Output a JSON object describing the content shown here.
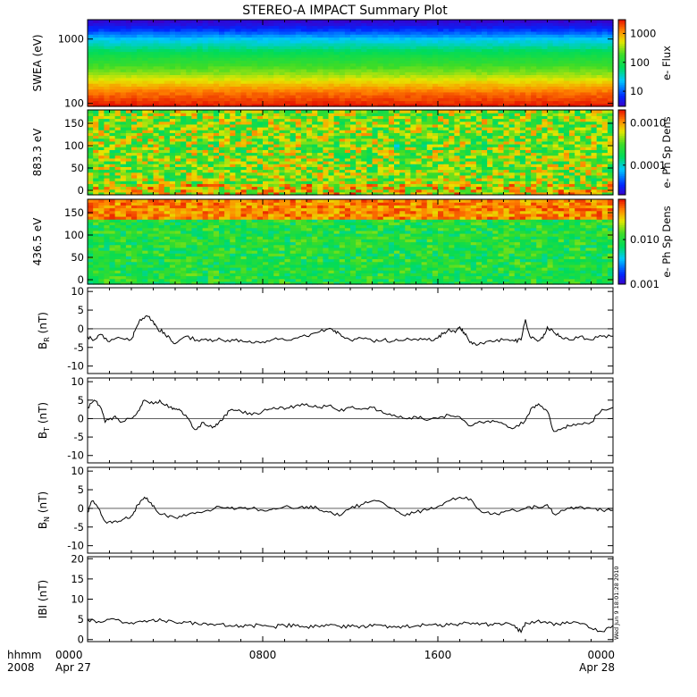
{
  "title": "STEREO-A IMPACT Summary Plot",
  "stamp": "Wed Jun  9 18:01:28 2010",
  "time_axis": {
    "label_top": "hhmm",
    "label_bottom": "2008",
    "ticks": [
      {
        "hour": 0,
        "label": "0000",
        "sub": "Apr 27"
      },
      {
        "hour": 8,
        "label": "0800",
        "sub": ""
      },
      {
        "hour": 16,
        "label": "1600",
        "sub": ""
      },
      {
        "hour": 24,
        "label": "0000",
        "sub": "Apr 28"
      }
    ]
  },
  "colors": {
    "axis": "#000000",
    "line": "#000000"
  },
  "chart_data": [
    {
      "type": "heatmap",
      "id": "swea",
      "ylabel": "SWEA (eV)",
      "yscale": "log",
      "ylim": [
        90,
        2000
      ],
      "yticks": [
        {
          "v": 100,
          "label": "100"
        },
        {
          "v": 1000,
          "label": "1000"
        }
      ],
      "colorbar": {
        "label": "e- Flux",
        "scale": "log",
        "range": [
          3,
          3000
        ],
        "ticks": [
          {
            "v": 10,
            "label": "10"
          },
          {
            "v": 100,
            "label": "100"
          },
          {
            "v": 1000,
            "label": "1000"
          }
        ]
      },
      "energy_profile": [
        [
          90,
          3000
        ],
        [
          150,
          1500
        ],
        [
          300,
          300
        ],
        [
          500,
          120
        ],
        [
          1000,
          25
        ],
        [
          1500,
          6
        ],
        [
          2000,
          3
        ]
      ]
    },
    {
      "type": "heatmap",
      "id": "pad883",
      "ylabel": "883.3 eV",
      "ylim": [
        -10,
        180
      ],
      "yticks": [
        {
          "v": 0,
          "label": "0"
        },
        {
          "v": 50,
          "label": "50"
        },
        {
          "v": 100,
          "label": "100"
        },
        {
          "v": 150,
          "label": "150"
        }
      ],
      "colorbar": {
        "label": "e- Ph Sp Dens",
        "scale": "log",
        "range": [
          2e-05,
          0.002
        ],
        "ticks": [
          {
            "v": 0.0001,
            "label": "0.0001"
          },
          {
            "v": 0.001,
            "label": "0.0010"
          }
        ]
      },
      "base_level": 0.0004,
      "dips": [
        [
          14.2,
          100,
          5e-05
        ],
        [
          15.3,
          100,
          8e-05
        ],
        [
          10.0,
          100,
          0.00012
        ],
        [
          18.1,
          105,
          0.0001
        ]
      ]
    },
    {
      "type": "heatmap",
      "id": "pad436",
      "ylabel": "436.5 eV",
      "ylim": [
        -10,
        180
      ],
      "yticks": [
        {
          "v": 0,
          "label": "0"
        },
        {
          "v": 50,
          "label": "50"
        },
        {
          "v": 100,
          "label": "100"
        },
        {
          "v": 150,
          "label": "150"
        }
      ],
      "colorbar": {
        "label": "e- Ph Sp Dens",
        "scale": "log",
        "range": [
          0.001,
          0.08
        ],
        "ticks": [
          {
            "v": 0.001,
            "label": "0.001"
          },
          {
            "v": 0.01,
            "label": "0.010"
          }
        ]
      },
      "base_level": 0.01,
      "high_level_near_180": 0.05
    },
    {
      "type": "line",
      "id": "br",
      "ylabel": "B",
      "ylabel_sub": "R",
      "ylabel_unit": " (nT)",
      "ylim": [
        -12,
        11
      ],
      "yticks": [
        {
          "v": -10,
          "label": "-10"
        },
        {
          "v": -5,
          "label": "-5"
        },
        {
          "v": 0,
          "label": "0"
        },
        {
          "v": 5,
          "label": "5"
        },
        {
          "v": 10,
          "label": "10"
        }
      ],
      "zero_line": true,
      "points": [
        [
          0,
          -2
        ],
        [
          0.3,
          -3
        ],
        [
          0.6,
          -1.5
        ],
        [
          1.0,
          -3.5
        ],
        [
          1.5,
          -2.5
        ],
        [
          2.0,
          -2.8
        ],
        [
          2.2,
          0
        ],
        [
          2.4,
          2.5
        ],
        [
          2.7,
          3.5
        ],
        [
          3.0,
          2
        ],
        [
          3.2,
          0
        ],
        [
          3.5,
          -1
        ],
        [
          3.8,
          -3
        ],
        [
          4.0,
          -4
        ],
        [
          4.5,
          -2
        ],
        [
          5.0,
          -3
        ],
        [
          5.5,
          -3.2
        ],
        [
          6.0,
          -2.5
        ],
        [
          6.5,
          -3.5
        ],
        [
          7.0,
          -3
        ],
        [
          7.5,
          -3.8
        ],
        [
          8.0,
          -3.5
        ],
        [
          8.5,
          -2.8
        ],
        [
          9.0,
          -3
        ],
        [
          9.5,
          -2.5
        ],
        [
          10.0,
          -2
        ],
        [
          10.5,
          -1
        ],
        [
          11.0,
          0
        ],
        [
          11.3,
          -0.5
        ],
        [
          11.6,
          -2
        ],
        [
          12.0,
          -3
        ],
        [
          12.5,
          -2.5
        ],
        [
          13.0,
          -3.2
        ],
        [
          13.5,
          -3
        ],
        [
          14.0,
          -3.3
        ],
        [
          14.5,
          -3
        ],
        [
          15.0,
          -2.8
        ],
        [
          15.5,
          -3
        ],
        [
          16.0,
          -2.5
        ],
        [
          16.3,
          -1
        ],
        [
          16.5,
          0
        ],
        [
          16.8,
          -1
        ],
        [
          17.0,
          0.5
        ],
        [
          17.2,
          -1
        ],
        [
          17.4,
          -3
        ],
        [
          17.7,
          -4
        ],
        [
          18.0,
          -3.8
        ],
        [
          18.5,
          -3.5
        ],
        [
          19.0,
          -3
        ],
        [
          19.5,
          -3.3
        ],
        [
          19.8,
          -3
        ],
        [
          20.0,
          2.5
        ],
        [
          20.2,
          -2
        ],
        [
          20.5,
          -3
        ],
        [
          20.8,
          -2.5
        ],
        [
          21.0,
          0.5
        ],
        [
          21.3,
          -1
        ],
        [
          21.6,
          -2
        ],
        [
          22.0,
          -3
        ],
        [
          22.5,
          -2
        ],
        [
          23.0,
          -3
        ],
        [
          23.5,
          -2
        ],
        [
          24.0,
          -2
        ]
      ]
    },
    {
      "type": "line",
      "id": "bt",
      "ylabel": "B",
      "ylabel_sub": "T",
      "ylabel_unit": " (nT)",
      "ylim": [
        -12,
        11
      ],
      "yticks": [
        {
          "v": -10,
          "label": "-10"
        },
        {
          "v": -5,
          "label": "-5"
        },
        {
          "v": 0,
          "label": "0"
        },
        {
          "v": 5,
          "label": "5"
        },
        {
          "v": 10,
          "label": "10"
        }
      ],
      "zero_line": true,
      "points": [
        [
          0,
          3
        ],
        [
          0.3,
          5
        ],
        [
          0.6,
          3
        ],
        [
          0.8,
          -1
        ],
        [
          1.2,
          0.5
        ],
        [
          1.5,
          -1
        ],
        [
          2.0,
          0
        ],
        [
          2.3,
          2
        ],
        [
          2.6,
          5
        ],
        [
          3.0,
          4
        ],
        [
          3.3,
          5
        ],
        [
          3.7,
          3
        ],
        [
          4.0,
          2.5
        ],
        [
          4.3,
          2
        ],
        [
          4.6,
          0
        ],
        [
          4.9,
          -3
        ],
        [
          5.3,
          -1
        ],
        [
          5.7,
          -2.5
        ],
        [
          6.0,
          -1
        ],
        [
          6.3,
          1
        ],
        [
          6.6,
          2.5
        ],
        [
          7.0,
          2
        ],
        [
          7.5,
          1
        ],
        [
          8.0,
          2
        ],
        [
          8.5,
          3
        ],
        [
          9.0,
          2.5
        ],
        [
          9.5,
          3.5
        ],
        [
          10.0,
          4
        ],
        [
          10.5,
          3
        ],
        [
          11.0,
          3.5
        ],
        [
          11.5,
          2
        ],
        [
          12.0,
          3
        ],
        [
          12.5,
          2.5
        ],
        [
          13.0,
          3
        ],
        [
          13.5,
          1.5
        ],
        [
          14.0,
          1
        ],
        [
          14.5,
          0
        ],
        [
          15.0,
          0.5
        ],
        [
          15.5,
          -0.5
        ],
        [
          16.0,
          0
        ],
        [
          16.5,
          1
        ],
        [
          17.0,
          0.5
        ],
        [
          17.5,
          -2
        ],
        [
          18.0,
          -1
        ],
        [
          18.5,
          -0.5
        ],
        [
          19.0,
          -1.5
        ],
        [
          19.5,
          -2.5
        ],
        [
          20.0,
          -0.5
        ],
        [
          20.3,
          3
        ],
        [
          20.6,
          4
        ],
        [
          21.0,
          2
        ],
        [
          21.3,
          -3.5
        ],
        [
          21.6,
          -3
        ],
        [
          22.0,
          -2
        ],
        [
          22.5,
          -1.5
        ],
        [
          23.0,
          -1
        ],
        [
          23.5,
          2.5
        ],
        [
          24.0,
          3
        ]
      ]
    },
    {
      "type": "line",
      "id": "bn",
      "ylabel": "B",
      "ylabel_sub": "N",
      "ylabel_unit": " (nT)",
      "ylim": [
        -12,
        11
      ],
      "yticks": [
        {
          "v": -10,
          "label": "-10"
        },
        {
          "v": -5,
          "label": "-5"
        },
        {
          "v": 0,
          "label": "0"
        },
        {
          "v": 5,
          "label": "5"
        },
        {
          "v": 10,
          "label": "10"
        }
      ],
      "zero_line": true,
      "points": [
        [
          0,
          -1
        ],
        [
          0.2,
          2
        ],
        [
          0.5,
          0
        ],
        [
          0.8,
          -3.5
        ],
        [
          1.2,
          -3.5
        ],
        [
          1.6,
          -3
        ],
        [
          2.0,
          -2
        ],
        [
          2.3,
          1
        ],
        [
          2.6,
          3
        ],
        [
          2.9,
          1.5
        ],
        [
          3.2,
          -1
        ],
        [
          3.6,
          -2
        ],
        [
          4.0,
          -2.5
        ],
        [
          4.5,
          -2
        ],
        [
          5.0,
          -1
        ],
        [
          5.5,
          -0.5
        ],
        [
          6.0,
          0.5
        ],
        [
          6.5,
          0
        ],
        [
          7.0,
          0.3
        ],
        [
          7.5,
          0
        ],
        [
          8.0,
          -0.5
        ],
        [
          8.5,
          0
        ],
        [
          9.0,
          0.5
        ],
        [
          9.5,
          0
        ],
        [
          10.0,
          0.5
        ],
        [
          10.5,
          0
        ],
        [
          11.0,
          -1
        ],
        [
          11.5,
          -2
        ],
        [
          12.0,
          0
        ],
        [
          12.5,
          1
        ],
        [
          13.0,
          2
        ],
        [
          13.5,
          1.5
        ],
        [
          14.0,
          0
        ],
        [
          14.5,
          -2
        ],
        [
          15.0,
          -1
        ],
        [
          15.5,
          -0.5
        ],
        [
          16.0,
          0.5
        ],
        [
          16.5,
          2
        ],
        [
          17.0,
          3
        ],
        [
          17.5,
          2.5
        ],
        [
          18.0,
          -1
        ],
        [
          18.5,
          -1.5
        ],
        [
          19.0,
          -1
        ],
        [
          19.5,
          -0.5
        ],
        [
          20.0,
          0
        ],
        [
          20.5,
          0.5
        ],
        [
          21.0,
          1
        ],
        [
          21.3,
          -1.5
        ],
        [
          21.7,
          -0.5
        ],
        [
          22.0,
          0
        ],
        [
          22.5,
          0.5
        ],
        [
          23.0,
          0
        ],
        [
          23.5,
          -0.5
        ],
        [
          24.0,
          -0.5
        ]
      ]
    },
    {
      "type": "line",
      "id": "bmag",
      "ylabel": "IBI (nT)",
      "ylim": [
        -0.5,
        20.5
      ],
      "yticks": [
        {
          "v": 0,
          "label": "0"
        },
        {
          "v": 5,
          "label": "5"
        },
        {
          "v": 10,
          "label": "10"
        },
        {
          "v": 15,
          "label": "15"
        },
        {
          "v": 20,
          "label": "20"
        }
      ],
      "zero_line": false,
      "points": [
        [
          0,
          5
        ],
        [
          0.5,
          4.5
        ],
        [
          1.0,
          5
        ],
        [
          1.5,
          4.6
        ],
        [
          2.0,
          4.2
        ],
        [
          2.5,
          4.4
        ],
        [
          3.0,
          5
        ],
        [
          3.5,
          4.6
        ],
        [
          4.0,
          4.2
        ],
        [
          4.5,
          4.3
        ],
        [
          5.0,
          4
        ],
        [
          5.5,
          3.6
        ],
        [
          6.0,
          3.8
        ],
        [
          6.5,
          3.5
        ],
        [
          7.0,
          3.4
        ],
        [
          7.5,
          3.5
        ],
        [
          8.0,
          3.4
        ],
        [
          8.5,
          3.2
        ],
        [
          9.0,
          3.5
        ],
        [
          9.5,
          3.4
        ],
        [
          10.0,
          3.2
        ],
        [
          10.5,
          3.4
        ],
        [
          11.0,
          3.5
        ],
        [
          11.5,
          3.3
        ],
        [
          12.0,
          3.2
        ],
        [
          12.5,
          3.4
        ],
        [
          13.0,
          3.3
        ],
        [
          13.5,
          3.4
        ],
        [
          14.0,
          3.3
        ],
        [
          14.5,
          3.2
        ],
        [
          15.0,
          3.4
        ],
        [
          15.5,
          3.5
        ],
        [
          16.0,
          3.4
        ],
        [
          16.5,
          3.6
        ],
        [
          17.0,
          4
        ],
        [
          17.5,
          3.8
        ],
        [
          18.0,
          4
        ],
        [
          18.5,
          3.6
        ],
        [
          19.0,
          3.8
        ],
        [
          19.5,
          3.5
        ],
        [
          19.8,
          1.8
        ],
        [
          20.0,
          4.2
        ],
        [
          20.5,
          4.5
        ],
        [
          21.0,
          4
        ],
        [
          21.5,
          3.8
        ],
        [
          22.0,
          4
        ],
        [
          22.5,
          3.9
        ],
        [
          23.0,
          2.8
        ],
        [
          23.5,
          2
        ],
        [
          24.0,
          3.5
        ]
      ]
    }
  ]
}
